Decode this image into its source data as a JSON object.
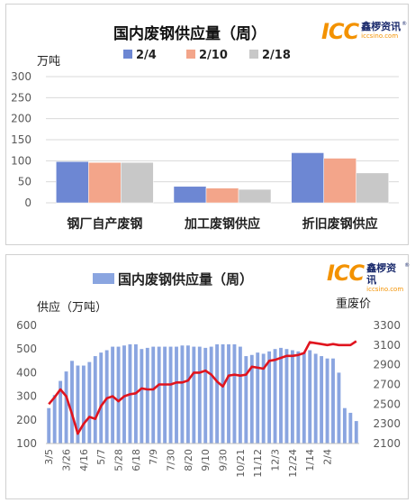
{
  "brand": {
    "logo_mark": "ICC",
    "logo_cn": "鑫椤资讯",
    "logo_url": "iccsino.com",
    "logo_r": "®"
  },
  "chart_data": [
    {
      "type": "bar",
      "title": "国内废钢供应量（周）",
      "ylabel": "万吨",
      "ylim": [
        0,
        300
      ],
      "yticks": [
        "0",
        "50",
        "100",
        "150",
        "200",
        "250",
        "300"
      ],
      "categories": [
        "钢厂自产废钢",
        "加工废钢供应",
        "折旧废钢供应"
      ],
      "legend_position": "top",
      "grid": true,
      "series": [
        {
          "name": "2/4",
          "color": "#6d87d3",
          "values": [
            98,
            39,
            119
          ]
        },
        {
          "name": "2/10",
          "color": "#f3a58a",
          "values": [
            96,
            35,
            106
          ]
        },
        {
          "name": "2/18",
          "color": "#c8c8c8",
          "values": [
            96,
            32,
            71
          ]
        }
      ]
    },
    {
      "type": "bar+line",
      "legend": [
        {
          "name": "国内废钢供应量（周）",
          "color": "#8aa5e0"
        }
      ],
      "left_axis_label": "供应（万吨）",
      "right_axis_label": "重废价",
      "y_left_lim": [
        100,
        600
      ],
      "y_left_ticks": [
        "100",
        "200",
        "300",
        "400",
        "500",
        "600"
      ],
      "y_right_lim": [
        2100,
        3300
      ],
      "y_right_ticks": [
        "2100",
        "2300",
        "2500",
        "2700",
        "2900",
        "3100",
        "3300"
      ],
      "x_tick_labels": [
        "3/5",
        "3/26",
        "4/16",
        "5/7",
        "5/28",
        "6/18",
        "7/9",
        "7/30",
        "8/20",
        "9/10",
        "9/30",
        "10/21",
        "11/12",
        "12/3",
        "12/24",
        "1/14",
        "2/4"
      ],
      "x_tick_every": 3,
      "bar_color": "#8aa5e0",
      "line_color": "#e0141e",
      "bars": [
        250,
        305,
        365,
        405,
        450,
        430,
        430,
        445,
        470,
        485,
        495,
        510,
        510,
        515,
        520,
        520,
        500,
        505,
        510,
        510,
        510,
        510,
        510,
        515,
        515,
        510,
        510,
        505,
        510,
        520,
        520,
        520,
        520,
        510,
        470,
        475,
        485,
        480,
        490,
        500,
        505,
        500,
        495,
        490,
        485,
        495,
        480,
        470,
        460,
        460,
        400,
        250,
        230,
        195
      ],
      "line": [
        2500,
        2570,
        2650,
        2580,
        2400,
        2200,
        2300,
        2370,
        2350,
        2480,
        2560,
        2580,
        2530,
        2580,
        2600,
        2610,
        2660,
        2650,
        2650,
        2700,
        2700,
        2700,
        2720,
        2720,
        2740,
        2820,
        2820,
        2840,
        2800,
        2730,
        2680,
        2790,
        2800,
        2790,
        2800,
        2880,
        2870,
        2860,
        2940,
        2950,
        2970,
        2990,
        2990,
        3000,
        3020,
        3130,
        3120,
        3110,
        3100,
        3110,
        3100,
        3100,
        3100,
        3140
      ]
    }
  ]
}
